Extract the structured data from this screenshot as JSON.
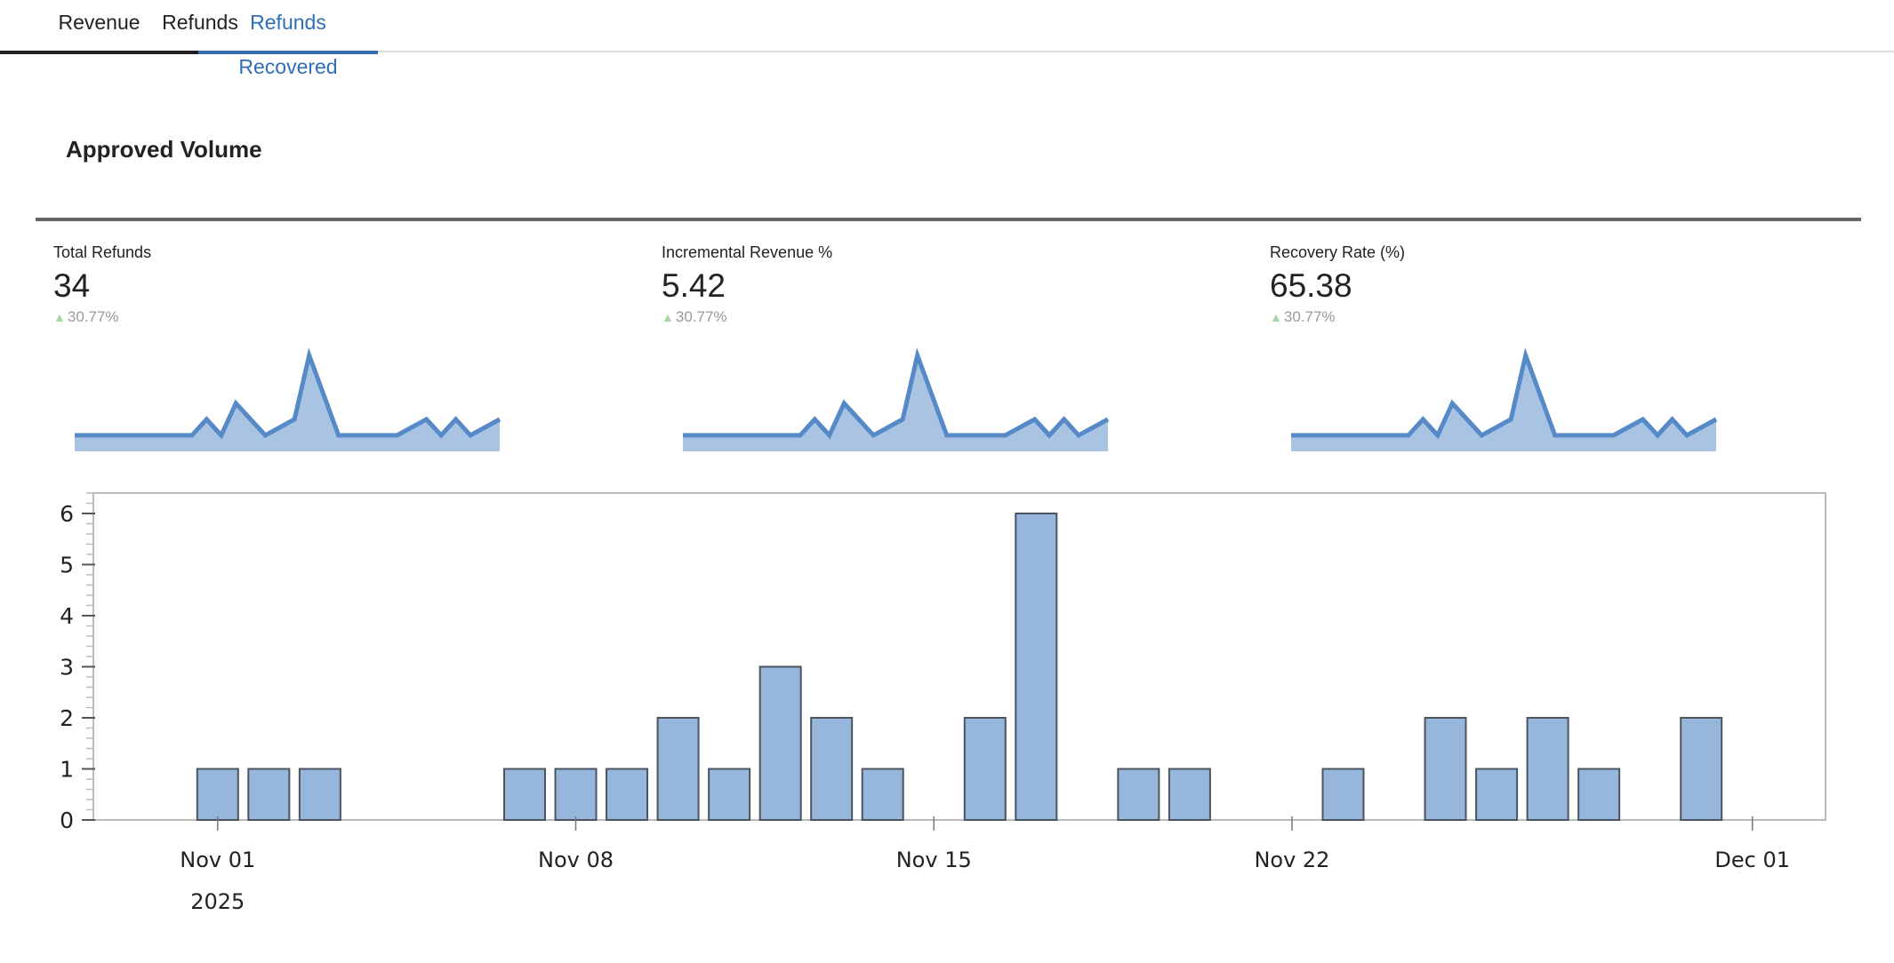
{
  "tabs": [
    {
      "label": "Revenue",
      "active": false
    },
    {
      "label": "Refunds",
      "active": false
    },
    {
      "label": "Refunds Recovered",
      "active": true
    }
  ],
  "section_title": "Approved Volume",
  "kpis": [
    {
      "label": "Total Refunds",
      "value": "34",
      "delta": "30.77%",
      "delta_direction": "up"
    },
    {
      "label": "Incremental Revenue %",
      "value": "5.42",
      "delta": "30.77%",
      "delta_direction": "up"
    },
    {
      "label": "Recovery Rate (%)",
      "value": "65.38",
      "delta": "30.77%",
      "delta_direction": "up"
    }
  ],
  "colors": {
    "tab_active": "#2f6db5",
    "tab_inactive_underline": "#1f1f24",
    "spark_line": "#5589c8",
    "spark_fill": "#a9c4e2",
    "bar_fill": "#97b6dc",
    "bar_stroke": "#4a5560",
    "delta_up": "#a5d6a7"
  },
  "chart_data": [
    {
      "type": "area",
      "name": "kpi-sparkline",
      "values": [
        1,
        1,
        1,
        1,
        1,
        1,
        1,
        1,
        1,
        2,
        1,
        3,
        2,
        1,
        1.5,
        2,
        6,
        3.5,
        1,
        1,
        1,
        1,
        1,
        1.5,
        2,
        1,
        2,
        1,
        1.5,
        2
      ],
      "ylim": [
        0,
        6
      ]
    },
    {
      "type": "bar",
      "title": "",
      "xlabel": "",
      "ylabel": "",
      "x": [
        "2025-11-01",
        "2025-11-02",
        "2025-11-03",
        "2025-11-07",
        "2025-11-08",
        "2025-11-09",
        "2025-11-10",
        "2025-11-11",
        "2025-11-12",
        "2025-11-13",
        "2025-11-14",
        "2025-11-16",
        "2025-11-17",
        "2025-11-19",
        "2025-11-20",
        "2025-11-23",
        "2025-11-25",
        "2025-11-26",
        "2025-11-27",
        "2025-11-28",
        "2025-11-30"
      ],
      "day_offsets": [
        0,
        1,
        2,
        6,
        7,
        8,
        9,
        10,
        11,
        12,
        13,
        15,
        16,
        18,
        19,
        22,
        24,
        25,
        26,
        27,
        29
      ],
      "values": [
        1,
        1,
        1,
        1,
        1,
        1,
        2,
        1,
        3,
        2,
        1,
        2,
        6,
        1,
        1,
        1,
        2,
        1,
        2,
        1,
        2
      ],
      "ylim": [
        0,
        6.4
      ],
      "xlim_day_offsets": [
        -2.43,
        31.43
      ],
      "yticks": [
        "0",
        "1",
        "2",
        "3",
        "4",
        "5",
        "6"
      ],
      "xticks": [
        {
          "label": "Nov 01",
          "sublabel": "2025",
          "day_offset": 0
        },
        {
          "label": "Nov 08",
          "sublabel": "",
          "day_offset": 7
        },
        {
          "label": "Nov 15",
          "sublabel": "",
          "day_offset": 14
        },
        {
          "label": "Nov 22",
          "sublabel": "",
          "day_offset": 21
        },
        {
          "label": "Dec 01",
          "sublabel": "",
          "day_offset": 30
        }
      ],
      "grid": false
    }
  ]
}
